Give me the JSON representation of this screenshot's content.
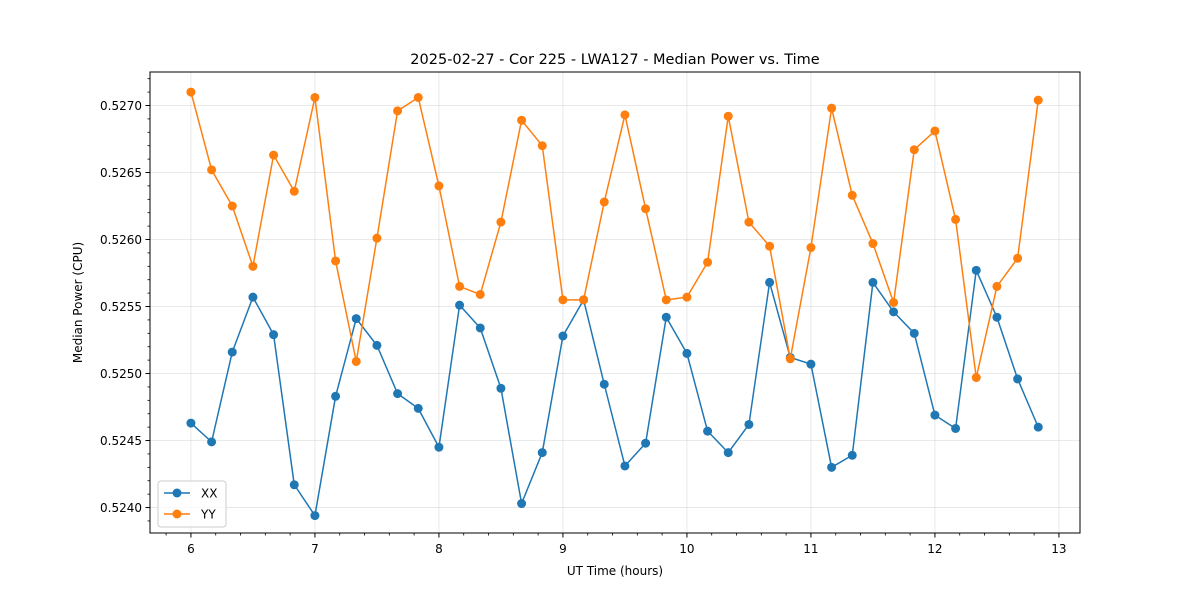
{
  "chart_data": {
    "type": "line",
    "title": "2025-02-27 - Cor 225 - LWA127 - Median Power vs. Time",
    "xlabel": "UT Time (hours)",
    "ylabel": "Median Power (CPU)",
    "xlim": [
      5.67,
      13.17
    ],
    "ylim": [
      0.52381,
      0.52725
    ],
    "xticks": [
      6,
      7,
      8,
      9,
      10,
      11,
      12,
      13
    ],
    "xtick_labels": [
      "6",
      "7",
      "8",
      "9",
      "10",
      "11",
      "12",
      "13"
    ],
    "yticks": [
      0.524,
      0.5245,
      0.525,
      0.5255,
      0.526,
      0.5265,
      0.527
    ],
    "ytick_labels": [
      "0.5240",
      "0.5245",
      "0.5250",
      "0.5255",
      "0.5260",
      "0.5265",
      "0.5270"
    ],
    "grid": true,
    "legend_position": "lower-left",
    "x": [
      6.0,
      6.1667,
      6.3333,
      6.5,
      6.6667,
      6.8333,
      7.0,
      7.1667,
      7.3333,
      7.5,
      7.6667,
      7.8333,
      8.0,
      8.1667,
      8.3333,
      8.5,
      8.6667,
      8.8333,
      9.0,
      9.1667,
      9.3333,
      9.5,
      9.6667,
      9.8333,
      10.0,
      10.1667,
      10.3333,
      10.5,
      10.6667,
      10.8333,
      11.0,
      11.1667,
      11.3333,
      11.5,
      11.6667,
      11.8333,
      12.0,
      12.1667,
      12.3333,
      12.5,
      12.6667,
      12.8333
    ],
    "series": [
      {
        "name": "XX",
        "color": "#1f77b4",
        "values": [
          0.52463,
          0.52449,
          0.52516,
          0.52557,
          0.52529,
          0.52417,
          0.52394,
          0.52483,
          0.52541,
          0.52521,
          0.52485,
          0.52474,
          0.52445,
          0.52551,
          0.52534,
          0.52489,
          0.52403,
          0.52441,
          0.52528,
          0.52555,
          0.52492,
          0.52431,
          0.52448,
          0.52542,
          0.52515,
          0.52457,
          0.52441,
          0.52462,
          0.52568,
          0.52512,
          0.52507,
          0.5243,
          0.52439,
          0.52568,
          0.52546,
          0.5253,
          0.52469,
          0.52459,
          0.52577,
          0.52542,
          0.52496,
          0.5246
        ]
      },
      {
        "name": "YY",
        "color": "#ff7f0e",
        "values": [
          0.5271,
          0.52652,
          0.52625,
          0.5258,
          0.52663,
          0.52636,
          0.52706,
          0.52584,
          0.52509,
          0.52601,
          0.52696,
          0.52706,
          0.5264,
          0.52565,
          0.52559,
          0.52613,
          0.52689,
          0.5267,
          0.52555,
          0.52555,
          0.52628,
          0.52693,
          0.52623,
          0.52555,
          0.52557,
          0.52583,
          0.52692,
          0.52613,
          0.52595,
          0.52511,
          0.52594,
          0.52698,
          0.52633,
          0.52597,
          0.52553,
          0.52667,
          0.52681,
          0.52615,
          0.52497,
          0.52565,
          0.52586,
          0.52704
        ]
      }
    ]
  }
}
